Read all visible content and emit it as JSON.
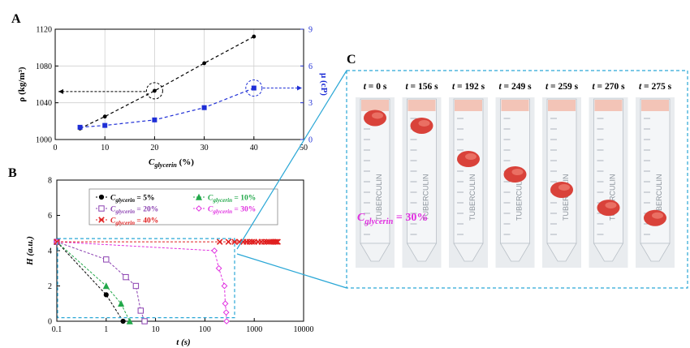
{
  "panel_labels": {
    "a": "A",
    "b": "B",
    "c": "C"
  },
  "colors": {
    "black": "#000000",
    "blue": "#1f2fd6",
    "purple": "#8a3fb0",
    "green": "#22a84a",
    "magenta": "#e030e0",
    "red": "#e02020",
    "cyan": "#2aa7d6",
    "cream": "#fff4d8"
  },
  "chart_data": [
    {
      "type": "line",
      "panel": "A",
      "xlabel_main": "C",
      "xlabel_sub": "glycerin",
      "xlabel_unit": " (%)",
      "xlim": [
        0,
        50
      ],
      "xticks": [
        "0",
        "10",
        "20",
        "30",
        "40",
        "50"
      ],
      "ylabel_left": "ρ (kg/m³)",
      "ylim_left": [
        1000,
        1120
      ],
      "yticks_left": [
        "1000",
        "1040",
        "1080",
        "1120"
      ],
      "ylabel_right": "μ (cP)",
      "ylim_right": [
        0,
        9
      ],
      "yticks_right": [
        "0",
        "3",
        "6",
        "9"
      ],
      "grid": true,
      "series": [
        {
          "axis": "left",
          "color": "black",
          "x": [
            5,
            10,
            20,
            30,
            40
          ],
          "y": [
            1012,
            1025,
            1053,
            1083,
            1112
          ]
        },
        {
          "axis": "right",
          "color": "blue",
          "x": [
            5,
            10,
            20,
            30,
            40
          ],
          "y": [
            1.0,
            1.15,
            1.6,
            2.6,
            4.2
          ]
        }
      ]
    },
    {
      "type": "line",
      "panel": "B",
      "xlabel": "t (s)",
      "xscale": "log",
      "xlim": [
        0.1,
        10000
      ],
      "xticks": [
        "0.1",
        "1",
        "10",
        "100",
        "1000",
        "10000"
      ],
      "ylabel": "H (a.u.)",
      "ylim": [
        0,
        8
      ],
      "yticks": [
        "0",
        "2",
        "4",
        "6",
        "8"
      ],
      "grid": false,
      "legend": [
        {
          "main": "C",
          "sub": "glycerin",
          "rest": " = 5%",
          "color": "black",
          "marker": "circle"
        },
        {
          "main": "C",
          "sub": "glycerin",
          "rest": " = 10%",
          "color": "green",
          "marker": "triangle"
        },
        {
          "main": "C",
          "sub": "glycerin",
          "rest": " = 20%",
          "color": "purple",
          "marker": "square"
        },
        {
          "main": "C",
          "sub": "glycerin",
          "rest": " = 30%",
          "color": "magenta",
          "marker": "diamond"
        },
        {
          "main": "C",
          "sub": "glycerin",
          "rest": " = 40%",
          "color": "red",
          "marker": "cross"
        }
      ],
      "series": [
        {
          "color": "black",
          "marker": "circle",
          "x": [
            0.1,
            1,
            2.2
          ],
          "y": [
            4.5,
            1.5,
            0
          ]
        },
        {
          "color": "green",
          "marker": "triangle",
          "x": [
            0.1,
            1,
            2,
            3
          ],
          "y": [
            4.5,
            2,
            1,
            0
          ]
        },
        {
          "color": "purple",
          "marker": "square",
          "x": [
            0.1,
            1,
            2.5,
            4,
            5,
            6
          ],
          "y": [
            4.5,
            3.5,
            2.5,
            2,
            0.6,
            0
          ]
        },
        {
          "color": "magenta",
          "marker": "diamond",
          "x": [
            0.1,
            156,
            192,
            249,
            259,
            270,
            275
          ],
          "y": [
            4.5,
            4.0,
            3.0,
            2.0,
            1.0,
            0.5,
            0
          ]
        },
        {
          "color": "red",
          "marker": "cross",
          "x": [
            0.1,
            200,
            300,
            400,
            500,
            600,
            700,
            800,
            900,
            1000,
            1200,
            1400,
            1600,
            1800,
            2000,
            2200,
            2400,
            2600,
            2800,
            3000
          ],
          "y": [
            4.5,
            4.5,
            4.5,
            4.5,
            4.5,
            4.5,
            4.5,
            4.5,
            4.5,
            4.5,
            4.5,
            4.5,
            4.5,
            4.5,
            4.5,
            4.5,
            4.5,
            4.5,
            4.5,
            4.5
          ]
        }
      ]
    }
  ],
  "panel_c": {
    "times": [
      {
        "t": "t",
        "rest": " = 0 s"
      },
      {
        "t": "t",
        "rest": " = 156 s"
      },
      {
        "t": "t",
        "rest": " = 192 s"
      },
      {
        "t": "t",
        "rest": " = 249 s"
      },
      {
        "t": "t",
        "rest": " = 259 s"
      },
      {
        "t": "t",
        "rest": " = 270 s"
      },
      {
        "t": "t",
        "rest": " = 275 s"
      }
    ],
    "blob_level": [
      0.06,
      0.12,
      0.38,
      0.5,
      0.62,
      0.76,
      0.84
    ],
    "overlay_main": "C",
    "overlay_sub": "glycerin",
    "overlay_rest": " = 30%",
    "tube_text": "TUBERCULIN"
  }
}
